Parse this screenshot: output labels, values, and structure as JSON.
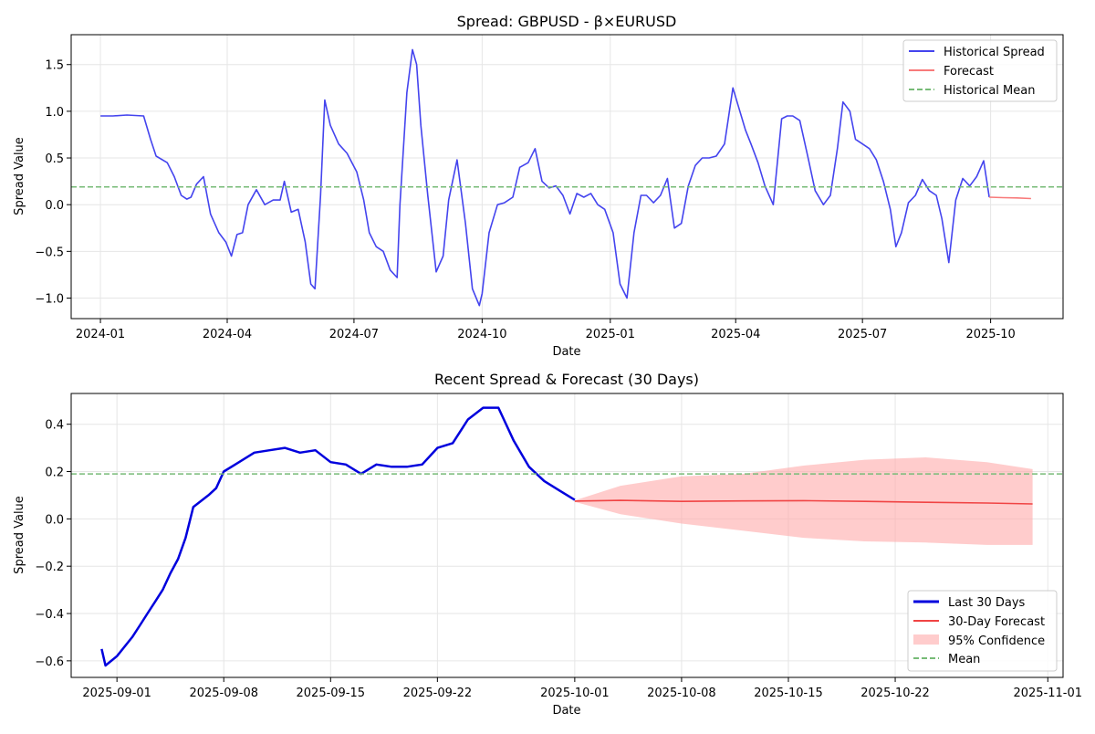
{
  "chart_data": [
    {
      "type": "line",
      "title": "Spread: GBPUSD - β×EURUSD",
      "xlabel": "Date",
      "ylabel": "Spread Value",
      "xlim": [
        "2023-12-11",
        "2025-11-22"
      ],
      "ylim": [
        -1.22,
        1.82
      ],
      "x_ticks": [
        "2024-01-01",
        "2024-04-01",
        "2024-07-01",
        "2024-10-01",
        "2025-01-01",
        "2025-04-01",
        "2025-07-01",
        "2025-10-01"
      ],
      "x_tick_labels": [
        "2024-01",
        "2024-04",
        "2024-07",
        "2024-10",
        "2025-01",
        "2025-04",
        "2025-07",
        "2025-10"
      ],
      "y_ticks": [
        -1.0,
        -0.5,
        0.0,
        0.5,
        1.0,
        1.5
      ],
      "y_tick_labels": [
        "−1.0",
        "−0.5",
        "0.0",
        "0.5",
        "1.0",
        "1.5"
      ],
      "grid": true,
      "legend": "top-right",
      "series": [
        {
          "name": "Historical Spread",
          "color": "#4444ee",
          "style": "solid",
          "x": [
            "2024-01-01",
            "2024-01-10",
            "2024-01-20",
            "2024-02-01",
            "2024-02-06",
            "2024-02-10",
            "2024-02-18",
            "2024-02-23",
            "2024-02-28",
            "2024-03-03",
            "2024-03-06",
            "2024-03-10",
            "2024-03-15",
            "2024-03-20",
            "2024-03-26",
            "2024-03-31",
            "2024-04-04",
            "2024-04-08",
            "2024-04-12",
            "2024-04-16",
            "2024-04-22",
            "2024-04-28",
            "2024-05-04",
            "2024-05-09",
            "2024-05-12",
            "2024-05-17",
            "2024-05-22",
            "2024-05-27",
            "2024-05-31",
            "2024-06-03",
            "2024-06-07",
            "2024-06-10",
            "2024-06-14",
            "2024-06-20",
            "2024-06-26",
            "2024-07-03",
            "2024-07-08",
            "2024-07-12",
            "2024-07-17",
            "2024-07-22",
            "2024-07-27",
            "2024-08-01",
            "2024-08-03",
            "2024-08-08",
            "2024-08-12",
            "2024-08-15",
            "2024-08-18",
            "2024-08-23",
            "2024-08-29",
            "2024-09-03",
            "2024-09-07",
            "2024-09-13",
            "2024-09-19",
            "2024-09-24",
            "2024-09-29",
            "2024-10-01",
            "2024-10-06",
            "2024-10-12",
            "2024-10-17",
            "2024-10-23",
            "2024-10-28",
            "2024-11-03",
            "2024-11-08",
            "2024-11-13",
            "2024-11-18",
            "2024-11-23",
            "2024-11-28",
            "2024-12-03",
            "2024-12-08",
            "2024-12-13",
            "2024-12-18",
            "2024-12-23",
            "2024-12-28",
            "2025-01-03",
            "2025-01-08",
            "2025-01-13",
            "2025-01-18",
            "2025-01-23",
            "2025-01-27",
            "2025-02-01",
            "2025-02-06",
            "2025-02-11",
            "2025-02-16",
            "2025-02-21",
            "2025-02-26",
            "2025-03-03",
            "2025-03-08",
            "2025-03-13",
            "2025-03-18",
            "2025-03-24",
            "2025-03-30",
            "2025-04-03",
            "2025-04-08",
            "2025-04-12",
            "2025-04-17",
            "2025-04-22",
            "2025-04-28",
            "2025-05-04",
            "2025-05-08",
            "2025-05-12",
            "2025-05-17",
            "2025-05-23",
            "2025-05-28",
            "2025-06-03",
            "2025-06-08",
            "2025-06-13",
            "2025-06-17",
            "2025-06-22",
            "2025-06-26",
            "2025-07-01",
            "2025-07-06",
            "2025-07-11",
            "2025-07-16",
            "2025-07-21",
            "2025-07-25",
            "2025-07-29",
            "2025-08-03",
            "2025-08-08",
            "2025-08-13",
            "2025-08-18",
            "2025-08-23",
            "2025-08-27",
            "2025-09-01",
            "2025-09-06",
            "2025-09-11",
            "2025-09-16",
            "2025-09-21",
            "2025-09-26",
            "2025-09-30"
          ],
          "y": [
            0.95,
            0.95,
            0.96,
            0.95,
            0.7,
            0.52,
            0.45,
            0.3,
            0.1,
            0.06,
            0.08,
            0.22,
            0.3,
            -0.1,
            -0.3,
            -0.4,
            -0.55,
            -0.32,
            -0.3,
            0.0,
            0.16,
            0.0,
            0.05,
            0.05,
            0.25,
            -0.08,
            -0.05,
            -0.4,
            -0.85,
            -0.9,
            0.1,
            1.12,
            0.85,
            0.65,
            0.55,
            0.35,
            0.05,
            -0.3,
            -0.45,
            -0.5,
            -0.7,
            -0.78,
            0.0,
            1.2,
            1.66,
            1.5,
            0.85,
            0.1,
            -0.72,
            -0.55,
            0.05,
            0.48,
            -0.2,
            -0.9,
            -1.08,
            -0.95,
            -0.3,
            0.0,
            0.02,
            0.08,
            0.4,
            0.45,
            0.6,
            0.25,
            0.18,
            0.2,
            0.1,
            -0.1,
            0.12,
            0.08,
            0.12,
            0.0,
            -0.05,
            -0.3,
            -0.85,
            -1.0,
            -0.3,
            0.1,
            0.1,
            0.02,
            0.1,
            0.28,
            -0.25,
            -0.2,
            0.2,
            0.42,
            0.5,
            0.5,
            0.52,
            0.65,
            1.25,
            1.05,
            0.8,
            0.65,
            0.45,
            0.2,
            0.0,
            0.92,
            0.95,
            0.95,
            0.9,
            0.5,
            0.15,
            0.0,
            0.1,
            0.6,
            1.1,
            1.0,
            0.7,
            0.65,
            0.6,
            0.48,
            0.25,
            -0.05,
            -0.45,
            -0.3,
            0.02,
            0.1,
            0.27,
            0.15,
            0.1,
            -0.15,
            -0.62,
            0.05,
            0.28,
            0.2,
            0.3,
            0.47,
            0.08
          ]
        },
        {
          "name": "Forecast",
          "color": "#f87a7a",
          "style": "solid",
          "x": [
            "2025-09-30",
            "2025-10-10",
            "2025-10-20",
            "2025-10-30"
          ],
          "y": [
            0.08,
            0.075,
            0.072,
            0.065
          ]
        },
        {
          "name": "Historical Mean",
          "color": "#77bb77",
          "style": "dashed",
          "y_const": 0.19
        }
      ]
    },
    {
      "type": "line",
      "title": "Recent Spread & Forecast (30 Days)",
      "xlabel": "Date",
      "ylabel": "Spread Value",
      "xlim": [
        "2025-08-29",
        "2025-11-02"
      ],
      "ylim": [
        -0.67,
        0.53
      ],
      "x_ticks": [
        "2025-09-01",
        "2025-09-08",
        "2025-09-15",
        "2025-09-22",
        "2025-10-01",
        "2025-10-08",
        "2025-10-15",
        "2025-10-22",
        "2025-11-01"
      ],
      "x_tick_labels": [
        "2025-09-01",
        "2025-09-08",
        "2025-09-15",
        "2025-09-22",
        "2025-10-01",
        "2025-10-08",
        "2025-10-15",
        "2025-10-22",
        "2025-11-01"
      ],
      "y_ticks": [
        -0.6,
        -0.4,
        -0.2,
        0.0,
        0.2,
        0.4
      ],
      "y_tick_labels": [
        "−0.6",
        "−0.4",
        "−0.2",
        "0.0",
        "0.2",
        "0.4"
      ],
      "grid": true,
      "legend": "bottom-right",
      "series": [
        {
          "name": "Last 30 Days",
          "color": "#0000dd",
          "style": "solid-thick",
          "x": [
            "2025-08-31",
            "2025-08-31T06",
            "2025-09-01",
            "2025-09-02",
            "2025-09-02T12",
            "2025-09-03",
            "2025-09-03T12",
            "2025-09-04",
            "2025-09-04T12",
            "2025-09-05",
            "2025-09-05T12",
            "2025-09-06",
            "2025-09-07",
            "2025-09-07T12",
            "2025-09-08",
            "2025-09-09",
            "2025-09-10",
            "2025-09-11",
            "2025-09-12",
            "2025-09-13",
            "2025-09-14",
            "2025-09-15",
            "2025-09-16",
            "2025-09-17",
            "2025-09-18",
            "2025-09-19",
            "2025-09-20",
            "2025-09-21",
            "2025-09-22",
            "2025-09-23",
            "2025-09-24",
            "2025-09-25",
            "2025-09-26",
            "2025-09-27",
            "2025-09-28",
            "2025-09-29",
            "2025-09-30",
            "2025-10-01"
          ],
          "y": [
            -0.55,
            -0.62,
            -0.58,
            -0.5,
            -0.45,
            -0.4,
            -0.35,
            -0.3,
            -0.23,
            -0.17,
            -0.08,
            0.05,
            0.1,
            0.13,
            0.2,
            0.24,
            0.28,
            0.29,
            0.3,
            0.28,
            0.29,
            0.24,
            0.23,
            0.19,
            0.23,
            0.22,
            0.22,
            0.23,
            0.3,
            0.32,
            0.42,
            0.47,
            0.47,
            0.33,
            0.22,
            0.16,
            0.12,
            0.08
          ]
        },
        {
          "name": "30-Day Forecast",
          "color": "#f04444",
          "style": "solid",
          "x": [
            "2025-10-01",
            "2025-10-04",
            "2025-10-08",
            "2025-10-12",
            "2025-10-16",
            "2025-10-20",
            "2025-10-24",
            "2025-10-28",
            "2025-10-31"
          ],
          "y": [
            0.075,
            0.078,
            0.074,
            0.076,
            0.077,
            0.074,
            0.07,
            0.067,
            0.063
          ],
          "upper": [
            0.078,
            0.14,
            0.18,
            0.19,
            0.225,
            0.25,
            0.26,
            0.24,
            0.21
          ],
          "lower": [
            0.072,
            0.02,
            -0.02,
            -0.05,
            -0.08,
            -0.095,
            -0.1,
            -0.11,
            -0.11
          ]
        },
        {
          "name": "95% Confidence",
          "color": "#ffaaaa",
          "style": "fill"
        },
        {
          "name": "Mean",
          "color": "#77bb77",
          "style": "dashed",
          "y_const": 0.19
        }
      ]
    }
  ]
}
